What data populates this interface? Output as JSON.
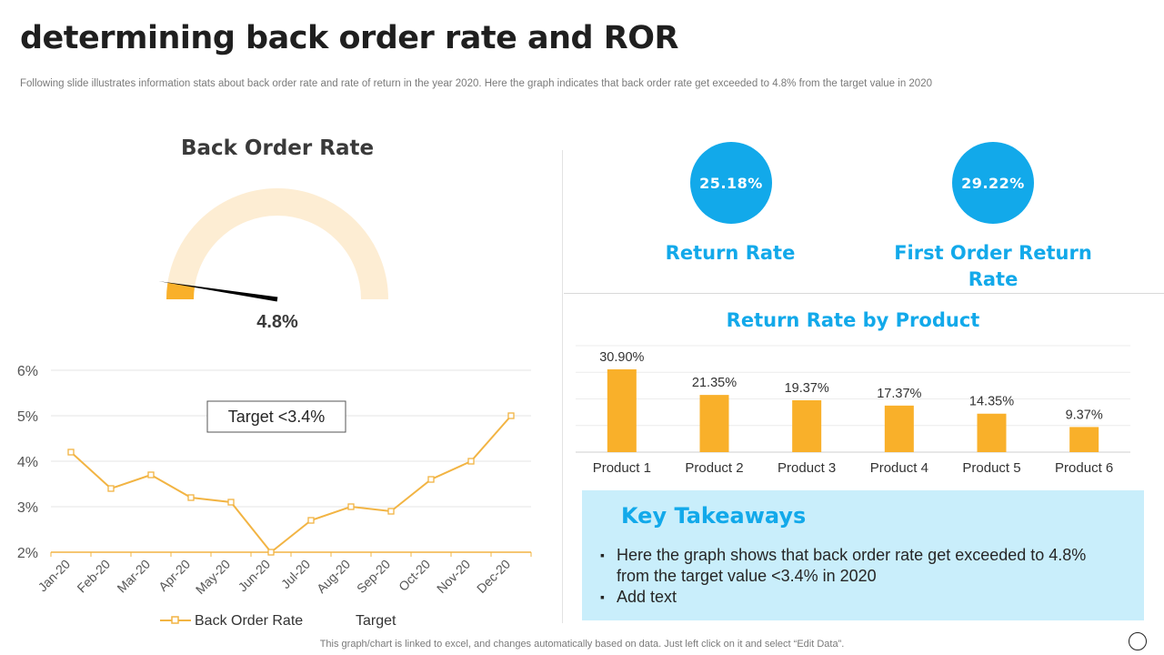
{
  "header": {
    "title": "determining back order rate and ROR",
    "subtitle": "Following slide illustrates information stats about back order rate and rate of return in the year 2020. Here the graph indicates that back order rate get exceeded to  4.8% from the target value in 2020"
  },
  "gauge": {
    "title": "Back Order Rate",
    "value_label": "4.8%",
    "value": 4.8,
    "scale_max": 100,
    "colors": {
      "track": "#fdedd3",
      "fill": "#f9b02a",
      "needle": "#000000"
    }
  },
  "kpis": [
    {
      "value": "25.18%",
      "label": "Return Rate"
    },
    {
      "value": "29.22%",
      "label": "First Order Return Rate"
    }
  ],
  "bar_section": {
    "title": "Return Rate by Product"
  },
  "takeaways": {
    "title": "Key Takeaways",
    "items": [
      "Here the graph shows that back order rate get exceeded to 4.8% from the target value <3.4% in 2020",
      "Add text"
    ]
  },
  "footnote": "This graph/chart is linked to excel,  and changes automatically based on data. Just left click on it and select “Edit Data”.",
  "colors": {
    "accent": "#12a9ea",
    "bar": "#f9b02a",
    "line": "#f2b443",
    "takeaways_bg": "#c9eefb"
  },
  "chart_data": [
    {
      "type": "line",
      "categories": [
        "Jan-20",
        "Feb-20",
        "Mar-20",
        "Apr-20",
        "May-20",
        "Jun-20",
        "Jul-20",
        "Aug-20",
        "Sep-20",
        "Oct-20",
        "Nov-20",
        "Dec-20"
      ],
      "series": [
        {
          "name": "Back Order Rate",
          "values": [
            4.2,
            3.4,
            3.7,
            3.2,
            3.1,
            2.0,
            2.7,
            3.0,
            2.9,
            3.6,
            4.0,
            5.0
          ]
        }
      ],
      "legend": [
        "Back Order Rate",
        "Target"
      ],
      "annotation": "Target <3.4%",
      "y_ticks": [
        "2%",
        "3%",
        "4%",
        "5%",
        "6%"
      ],
      "ylim": [
        2,
        6
      ]
    },
    {
      "type": "bar",
      "title": "Return Rate by Product",
      "categories": [
        "Product 1",
        "Product 2",
        "Product 3",
        "Product 4",
        "Product 5",
        "Product 6"
      ],
      "values": [
        30.9,
        21.35,
        19.37,
        17.37,
        14.35,
        9.37
      ],
      "value_labels": [
        "30.90%",
        "21.35%",
        "19.37%",
        "17.37%",
        "14.35%",
        "9.37%"
      ],
      "ylim": [
        0,
        30.9
      ]
    }
  ]
}
